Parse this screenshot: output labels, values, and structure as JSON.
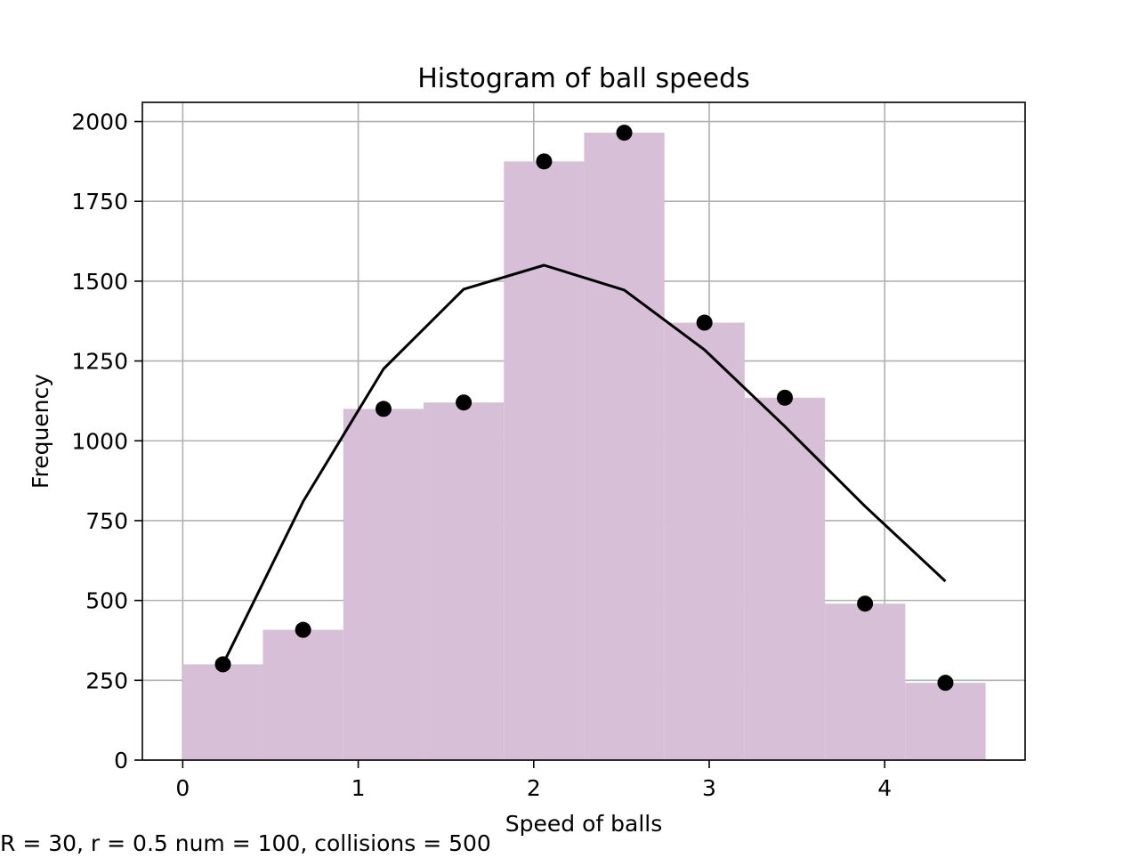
{
  "chart_data": {
    "type": "bar",
    "title": "Histogram of ball speeds",
    "xlabel": "Speed of balls",
    "ylabel": "Frequency",
    "xlim": [
      -0.23,
      4.8
    ],
    "ylim": [
      0,
      2060
    ],
    "grid": true,
    "x_ticks": [
      0,
      1,
      2,
      3,
      4
    ],
    "y_ticks": [
      0,
      250,
      500,
      750,
      1000,
      1250,
      1500,
      1750,
      2000
    ],
    "bin_edges": [
      0.0,
      0.457,
      0.915,
      1.372,
      1.83,
      2.287,
      2.745,
      3.202,
      3.66,
      4.117,
      4.575
    ],
    "series": [
      {
        "type": "histogram",
        "values": [
          300,
          408,
          1100,
          1120,
          1875,
          1965,
          1370,
          1135,
          490,
          242
        ],
        "color": "#d8bfd8"
      },
      {
        "type": "scatter",
        "x": [
          0.229,
          0.686,
          1.144,
          1.601,
          2.059,
          2.516,
          2.973,
          3.431,
          3.888,
          4.346
        ],
        "values": [
          300,
          408,
          1100,
          1120,
          1875,
          1965,
          1370,
          1135,
          490,
          242
        ],
        "color": "#000000"
      },
      {
        "type": "line",
        "x": [
          0.229,
          0.686,
          1.144,
          1.601,
          2.059,
          2.516,
          2.973,
          3.431,
          3.888,
          4.346
        ],
        "values": [
          300,
          810,
          1225,
          1475,
          1550,
          1472,
          1285,
          1045,
          795,
          560
        ],
        "color": "#000000"
      }
    ]
  },
  "caption": "R = 30, r = 0.5 num = 100, collisions = 500"
}
